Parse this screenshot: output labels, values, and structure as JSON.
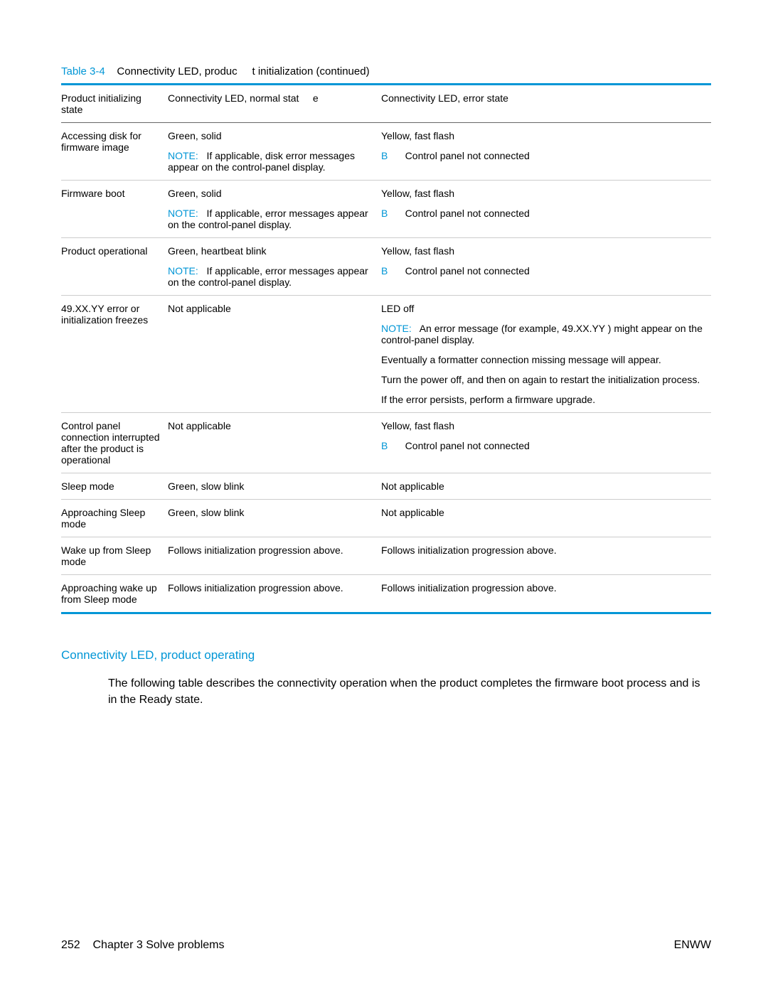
{
  "caption": {
    "tableNumber": "Table 3-4",
    "title": "Connectivity LED, produc",
    "titleCont": "t initialization (continued)"
  },
  "headers": {
    "c1": "Product initializing state",
    "c2a": "Connectivity LED, normal stat",
    "c2b": "e",
    "c3": "Connectivity LED, error state"
  },
  "rows": {
    "r1": {
      "c1": "Accessing disk for firmware image",
      "c2a": "Green, solid",
      "c2note": "If applicable, disk error messages appear on the control-panel display.",
      "c3a": "Yellow, fast flash",
      "c3b": "Control panel not connected"
    },
    "r2": {
      "c1": "Firmware boot",
      "c2a": "Green, solid",
      "c2note": "If applicable, error messages appear on the control-panel display.",
      "c3a": "Yellow, fast flash",
      "c3b": "Control panel not connected"
    },
    "r3": {
      "c1": "Product operational",
      "c2a": "Green, heartbeat blink",
      "c2note": "If applicable, error messages appear on the control-panel display.",
      "c3a": "Yellow, fast flash",
      "c3b": "Control panel not connected"
    },
    "r4": {
      "c1": "49.XX.YY   error or initialization freezes",
      "c2a": "Not applicable",
      "c3a": "LED off",
      "c3note": "An error message (for example, 49.XX.YY  ) might appear on the control-panel display.",
      "c3c": "Eventually a formatter connection missing message will appear.",
      "c3d": "Turn the power off, and then on again to restart the initialization process.",
      "c3e": "If the error persists, perform a firmware upgrade."
    },
    "r5": {
      "c1": "Control panel connection interrupted after the product is operational",
      "c2a": "Not applicable",
      "c3a": "Yellow, fast flash",
      "c3b": "Control panel not connected"
    },
    "r6": {
      "c1": "Sleep mode",
      "c2a": "Green, slow blink",
      "c3a": "Not applicable"
    },
    "r7": {
      "c1": "Approaching Sleep mode",
      "c2a": "Green, slow blink",
      "c3a": "Not applicable"
    },
    "r8": {
      "c1": "Wake up from Sleep mode",
      "c2a": "Follows initialization progression above.",
      "c3a": "Follows initialization progression above."
    },
    "r9": {
      "c1": "Approaching wake up from Sleep mode",
      "c2a": "Follows initialization progression above.",
      "c3a": "Follows initialization progression above."
    }
  },
  "labels": {
    "note": "NOTE:",
    "b": "B"
  },
  "section": {
    "heading": "Connectivity LED, product operating",
    "body": "The following table describes the connectivity operation when the product completes the firmware boot process and is in the Ready state."
  },
  "footer": {
    "page": "252",
    "chapter": "Chapter 3   Solve problems",
    "right": "ENWW"
  }
}
